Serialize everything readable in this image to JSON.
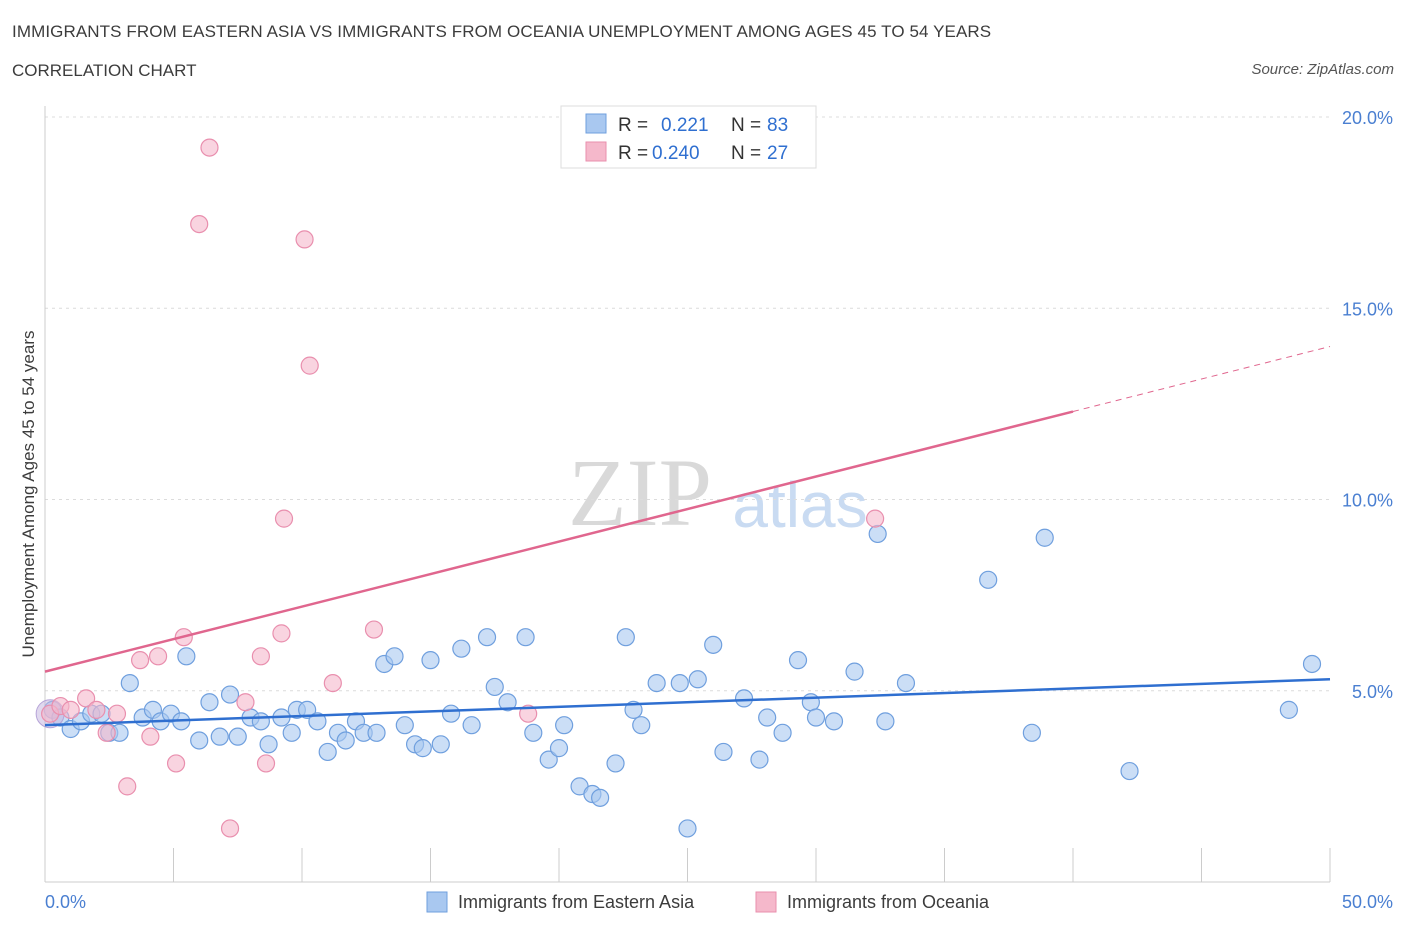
{
  "header": {
    "title": "IMMIGRANTS FROM EASTERN ASIA VS IMMIGRANTS FROM OCEANIA UNEMPLOYMENT AMONG AGES 45 TO 54 YEARS",
    "subtitle": "CORRELATION CHART",
    "source": "Source: ZipAtlas.com"
  },
  "watermark": {
    "zip": "ZIP",
    "atlas": "atlas"
  },
  "legend_top": {
    "r_label": "R =",
    "n_label": "N =",
    "series": [
      {
        "r": "0.221",
        "n": "83"
      },
      {
        "r": "0.240",
        "n": "27"
      }
    ]
  },
  "colors": {
    "blue_fill": "#a9c8f0",
    "blue_stroke": "#6f9fde",
    "blue_line": "#2f6fd0",
    "pink_fill": "#f5b8cb",
    "pink_stroke": "#e98fae",
    "pink_line": "#e0668e",
    "value_text": "#2f6fd0"
  },
  "chart_data": {
    "type": "scatter",
    "ylabel": "Unemployment Among Ages 45 to 54 years",
    "xlim": [
      0,
      50
    ],
    "ylim": [
      0,
      20
    ],
    "x_tick_labels": [
      "0.0%",
      "50.0%"
    ],
    "y_ticks": [
      5,
      10,
      15,
      20
    ],
    "y_tick_labels": [
      "5.0%",
      "10.0%",
      "15.0%",
      "20.0%"
    ],
    "grid": "horizontal dashed",
    "legend_position": "top-center and bottom",
    "series": [
      {
        "name": "Immigrants from Eastern Asia",
        "color": "#a9c8f0",
        "trend": {
          "x": [
            0,
            50
          ],
          "y": [
            4.1,
            5.3
          ]
        },
        "points": [
          [
            0.3,
            4.5
          ],
          [
            0.6,
            4.3
          ],
          [
            1.0,
            4.0
          ],
          [
            1.4,
            4.2
          ],
          [
            1.8,
            4.4
          ],
          [
            2.2,
            4.4
          ],
          [
            2.5,
            3.9
          ],
          [
            2.9,
            3.9
          ],
          [
            3.3,
            5.2
          ],
          [
            3.8,
            4.3
          ],
          [
            4.2,
            4.5
          ],
          [
            4.5,
            4.2
          ],
          [
            4.9,
            4.4
          ],
          [
            5.3,
            4.2
          ],
          [
            5.5,
            5.9
          ],
          [
            6.0,
            3.7
          ],
          [
            6.4,
            4.7
          ],
          [
            6.8,
            3.8
          ],
          [
            7.2,
            4.9
          ],
          [
            7.5,
            3.8
          ],
          [
            8.0,
            4.3
          ],
          [
            8.4,
            4.2
          ],
          [
            8.7,
            3.6
          ],
          [
            9.2,
            4.3
          ],
          [
            9.6,
            3.9
          ],
          [
            9.8,
            4.5
          ],
          [
            10.2,
            4.5
          ],
          [
            10.6,
            4.2
          ],
          [
            11.0,
            3.4
          ],
          [
            11.4,
            3.9
          ],
          [
            11.7,
            3.7
          ],
          [
            12.1,
            4.2
          ],
          [
            12.4,
            3.9
          ],
          [
            12.9,
            3.9
          ],
          [
            13.2,
            5.7
          ],
          [
            13.6,
            5.9
          ],
          [
            14.0,
            4.1
          ],
          [
            14.4,
            3.6
          ],
          [
            14.7,
            3.5
          ],
          [
            15.0,
            5.8
          ],
          [
            15.4,
            3.6
          ],
          [
            15.8,
            4.4
          ],
          [
            16.2,
            6.1
          ],
          [
            16.6,
            4.1
          ],
          [
            17.2,
            6.4
          ],
          [
            17.5,
            5.1
          ],
          [
            18.0,
            4.7
          ],
          [
            18.7,
            6.4
          ],
          [
            19.0,
            3.9
          ],
          [
            19.6,
            3.2
          ],
          [
            20.0,
            3.5
          ],
          [
            20.2,
            4.1
          ],
          [
            20.8,
            2.5
          ],
          [
            21.3,
            2.3
          ],
          [
            21.6,
            2.2
          ],
          [
            22.2,
            3.1
          ],
          [
            22.6,
            6.4
          ],
          [
            22.9,
            4.5
          ],
          [
            23.2,
            4.1
          ],
          [
            23.8,
            5.2
          ],
          [
            24.7,
            5.2
          ],
          [
            25.0,
            1.4
          ],
          [
            25.4,
            5.3
          ],
          [
            26.0,
            6.2
          ],
          [
            26.4,
            3.4
          ],
          [
            27.2,
            4.8
          ],
          [
            27.8,
            3.2
          ],
          [
            28.1,
            4.3
          ],
          [
            28.7,
            3.9
          ],
          [
            29.3,
            5.8
          ],
          [
            29.8,
            4.7
          ],
          [
            30.0,
            4.3
          ],
          [
            30.7,
            4.2
          ],
          [
            31.5,
            5.5
          ],
          [
            32.4,
            9.1
          ],
          [
            32.7,
            4.2
          ],
          [
            33.5,
            5.2
          ],
          [
            36.7,
            7.9
          ],
          [
            38.4,
            3.9
          ],
          [
            38.9,
            9.0
          ],
          [
            42.2,
            2.9
          ],
          [
            48.4,
            4.5
          ],
          [
            49.3,
            5.7
          ]
        ]
      },
      {
        "name": "Immigrants from Oceania",
        "color": "#f5b8cb",
        "trend": {
          "x": [
            0,
            40
          ],
          "y": [
            5.5,
            12.3
          ]
        },
        "trend_dashed": {
          "x": [
            40,
            50
          ],
          "y": [
            12.3,
            14.0
          ]
        },
        "points": [
          [
            0.2,
            4.4
          ],
          [
            0.6,
            4.6
          ],
          [
            1.0,
            4.5
          ],
          [
            1.6,
            4.8
          ],
          [
            2.0,
            4.5
          ],
          [
            2.4,
            3.9
          ],
          [
            2.8,
            4.4
          ],
          [
            3.2,
            2.5
          ],
          [
            3.7,
            5.8
          ],
          [
            4.1,
            3.8
          ],
          [
            4.4,
            5.9
          ],
          [
            5.1,
            3.1
          ],
          [
            5.4,
            6.4
          ],
          [
            6.0,
            17.2
          ],
          [
            6.4,
            19.2
          ],
          [
            7.2,
            1.4
          ],
          [
            7.8,
            4.7
          ],
          [
            8.4,
            5.9
          ],
          [
            8.6,
            3.1
          ],
          [
            9.2,
            6.5
          ],
          [
            9.3,
            9.5
          ],
          [
            10.1,
            16.8
          ],
          [
            10.3,
            13.5
          ],
          [
            11.2,
            5.2
          ],
          [
            12.8,
            6.6
          ],
          [
            18.8,
            4.4
          ],
          [
            32.3,
            9.5
          ]
        ]
      }
    ]
  }
}
